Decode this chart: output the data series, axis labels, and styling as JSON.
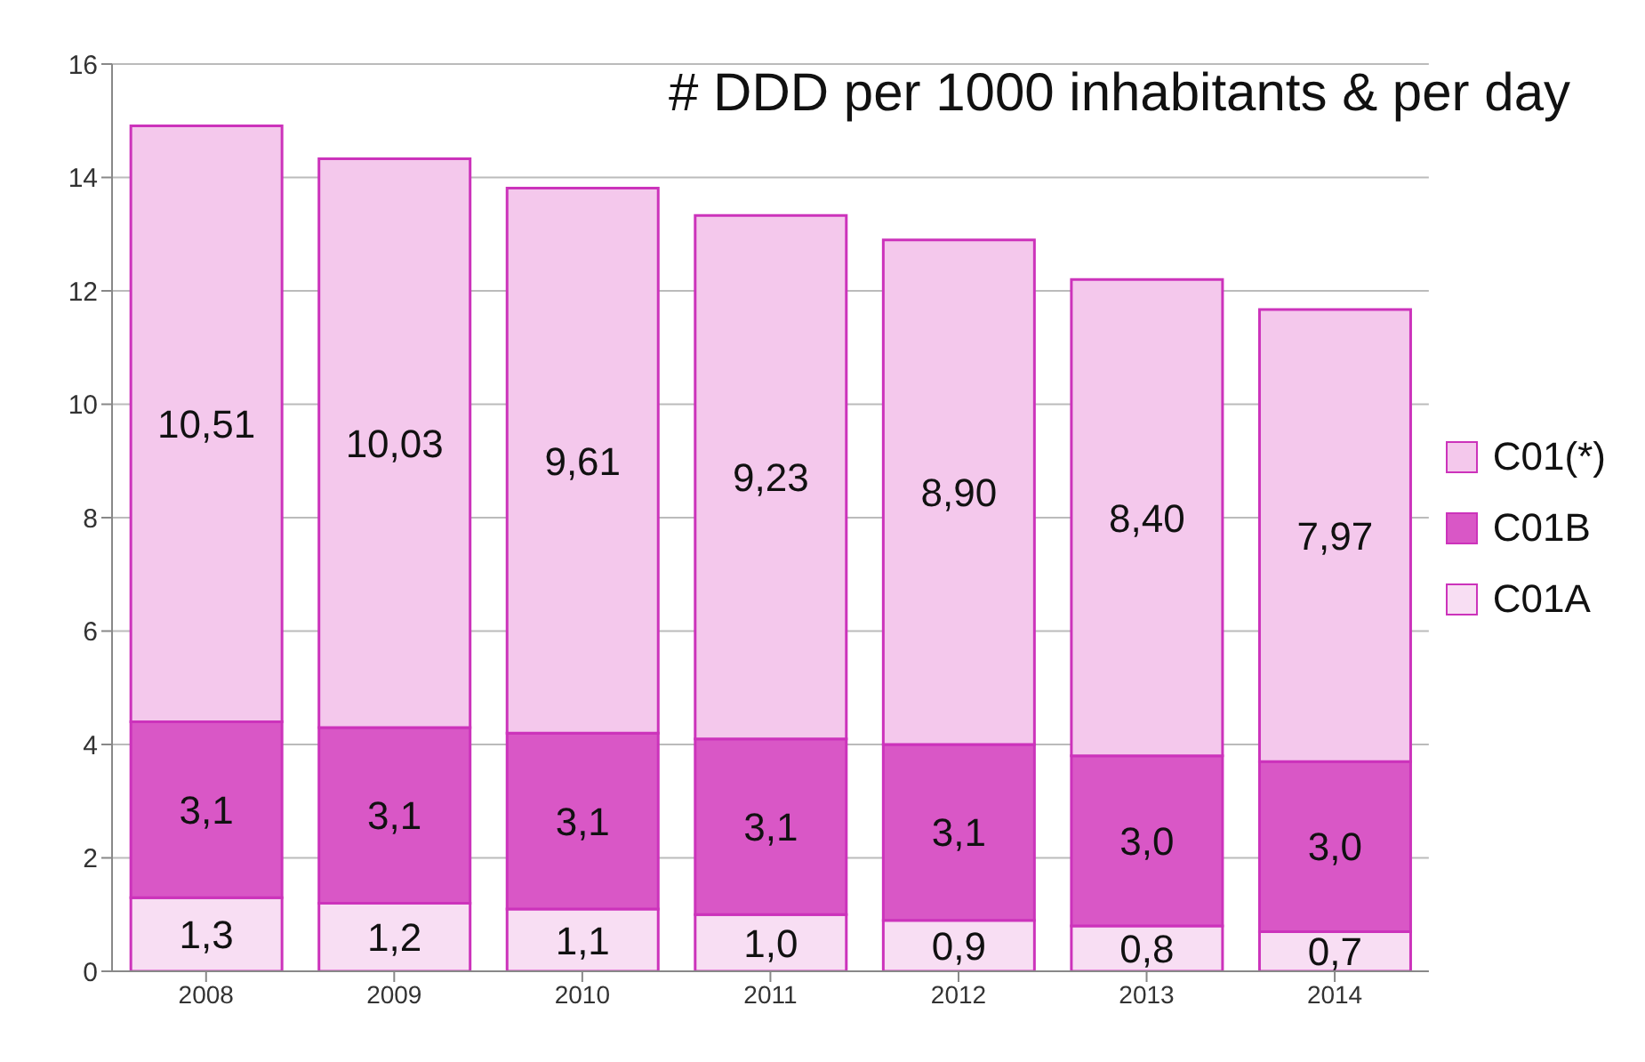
{
  "chart_data": {
    "type": "bar",
    "title": "# DDD per 1000 inhabitants & per day",
    "stacked": true,
    "categories": [
      "2008",
      "2009",
      "2010",
      "2011",
      "2012",
      "2013",
      "2014"
    ],
    "series": [
      {
        "name": "C01A",
        "color": "#f8def3",
        "values": [
          1.3,
          1.2,
          1.1,
          1.0,
          0.9,
          0.8,
          0.7
        ],
        "value_labels": [
          "1,3",
          "1,2",
          "1,1",
          "1,0",
          "0,9",
          "0,8",
          "0,7"
        ]
      },
      {
        "name": "C01B",
        "color": "#d957c6",
        "values": [
          3.1,
          3.1,
          3.1,
          3.1,
          3.1,
          3.0,
          3.0
        ],
        "value_labels": [
          "3,1",
          "3,1",
          "3,1",
          "3,1",
          "3,1",
          "3,0",
          "3,0"
        ]
      },
      {
        "name": "C01(*)",
        "color": "#f4c8ec",
        "values": [
          10.51,
          10.03,
          9.61,
          9.23,
          8.9,
          8.4,
          7.97
        ],
        "value_labels": [
          "10,51",
          "10,03",
          "9,61",
          "9,23",
          "8,90",
          "8,40",
          "7,97"
        ]
      }
    ],
    "ylim": [
      0,
      16
    ],
    "yticks": [
      0,
      2,
      4,
      6,
      8,
      10,
      12,
      14,
      16
    ],
    "grid": "y",
    "legend": "right"
  }
}
